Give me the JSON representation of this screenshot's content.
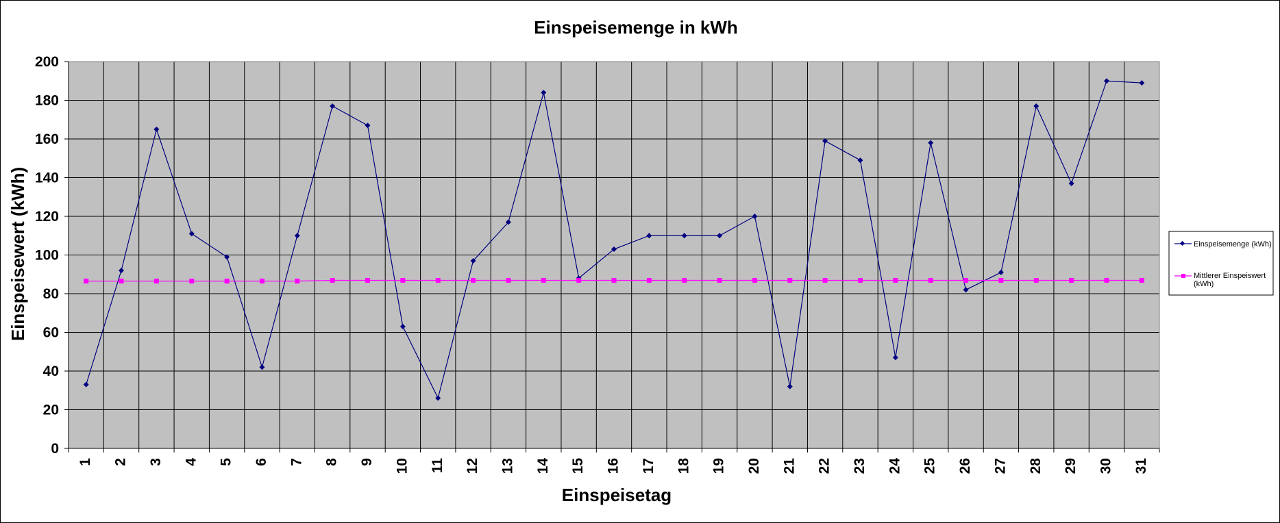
{
  "chart_data": {
    "type": "line",
    "title": "Einspeisemenge in kWh",
    "xlabel": "Einspeisetag",
    "ylabel": "Einspeisewert  (kWh)",
    "categories": [
      "1",
      "2",
      "3",
      "4",
      "5",
      "6",
      "7",
      "8",
      "9",
      "10",
      "11",
      "12",
      "13",
      "14",
      "15",
      "16",
      "17",
      "18",
      "19",
      "20",
      "21",
      "22",
      "23",
      "24",
      "25",
      "26",
      "27",
      "28",
      "29",
      "30",
      "31"
    ],
    "ylim": [
      0,
      200
    ],
    "yticks": [
      "0",
      "20",
      "40",
      "60",
      "80",
      "100",
      "120",
      "140",
      "160",
      "180",
      "200"
    ],
    "grid": true,
    "legend_position": "right",
    "series": [
      {
        "name": "Einspeisemenge (kWh)",
        "color": "#000080",
        "marker": "diamond",
        "values": [
          33,
          92,
          165,
          111,
          99,
          42,
          110,
          177,
          167,
          63,
          26,
          97,
          117,
          184,
          88,
          103,
          110,
          110,
          110,
          120,
          32,
          159,
          149,
          47,
          158,
          82,
          91,
          177,
          137,
          190,
          189
        ]
      },
      {
        "name": "Mittlerer Einspeiswert (kWh)",
        "color": "#ff00ff",
        "marker": "square",
        "values": [
          86.5,
          86.5,
          86.5,
          86.5,
          86.5,
          86.5,
          86.5,
          86.9,
          86.9,
          86.9,
          86.9,
          86.9,
          86.9,
          86.9,
          86.9,
          86.9,
          86.9,
          86.9,
          86.9,
          86.9,
          86.9,
          86.9,
          86.9,
          86.9,
          86.9,
          86.9,
          86.9,
          86.9,
          86.9,
          86.9,
          86.9
        ]
      }
    ]
  }
}
